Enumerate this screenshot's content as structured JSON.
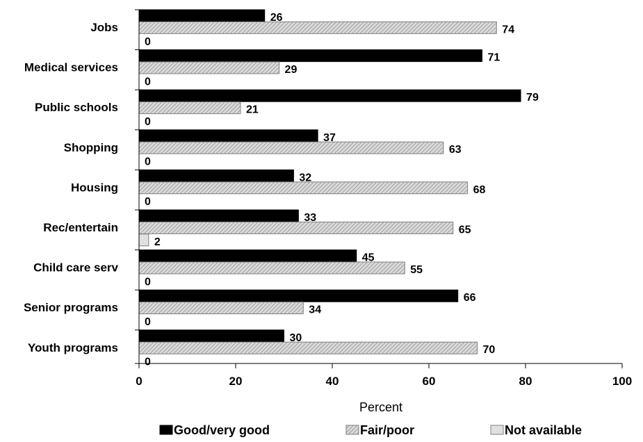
{
  "chart_data": {
    "type": "bar",
    "orientation": "horizontal",
    "categories": [
      "Jobs",
      "Medical services",
      "Public schools",
      "Shopping",
      "Housing",
      "Rec/entertain",
      "Child care serv",
      "Senior programs",
      "Youth programs"
    ],
    "series": [
      {
        "name": "Good/very good",
        "values": [
          26,
          71,
          79,
          37,
          32,
          33,
          45,
          66,
          30
        ],
        "color": "#000000",
        "pattern": "solid"
      },
      {
        "name": "Fair/poor",
        "values": [
          74,
          29,
          21,
          63,
          68,
          65,
          55,
          34,
          70
        ],
        "color": "#bfbfbf",
        "pattern": "diagonal-hatch"
      },
      {
        "name": "Not available",
        "values": [
          0,
          0,
          0,
          0,
          0,
          2,
          0,
          0,
          0
        ],
        "color": "#e0e0e0",
        "pattern": "solid-light"
      }
    ],
    "xlabel": "Percent",
    "xlim": [
      0,
      100
    ],
    "xticks": [
      0,
      20,
      40,
      60,
      80,
      100
    ],
    "legend_position": "bottom",
    "grid": false,
    "data_labels": true
  }
}
